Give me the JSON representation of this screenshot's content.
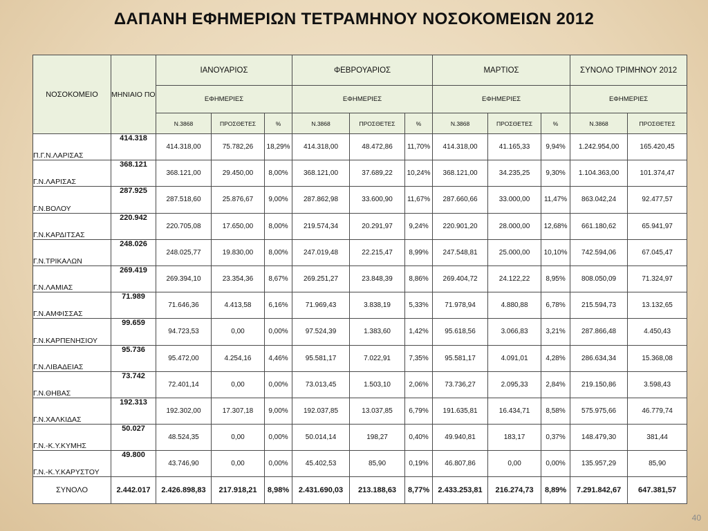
{
  "title": "ΔΑΠΑΝΗ ΕΦΗΜΕΡΙΩΝ ΤΕΤΡΑΜΗΝΟΥ ΝΟΣΟΚΟΜΕΙΩΝ 2012",
  "page_number": "40",
  "headers": {
    "hospital": "ΝΟΣΟΚΟΜΕΙΟ",
    "monthly_credit": "ΜΗΝΙΑΙΟ ΠΟΣΟ ΠΙΣΤΩΣΗΣ ΥΔΕ",
    "jan": "ΙΑΝΟΥΑΡΙΟΣ",
    "feb": "ΦΕΒΡΟΥΑΡΙΟΣ",
    "mar": "ΜΑΡΤΙΟΣ",
    "total": "ΣΥΝΟΛΟ  ΤΡΙΜΗΝΟΥ 2012",
    "shifts": "ΕΦΗΜΕΡΙΕΣ",
    "law": "Ν.3868",
    "extra": "ΠΡΟΣΘΕΤΕΣ",
    "pct": "%"
  },
  "rows": [
    {
      "name": "Π.Γ.Ν.ΛΑΡΙΣΑΣ",
      "credit": "414.318",
      "v": [
        "414.318,00",
        "75.782,26",
        "18,29%",
        "414.318,00",
        "48.472,86",
        "11,70%",
        "414.318,00",
        "41.165,33",
        "9,94%",
        "1.242.954,00",
        "165.420,45"
      ]
    },
    {
      "name": "Γ.Ν.ΛΑΡΙΣΑΣ",
      "credit": "368.121",
      "v": [
        "368.121,00",
        "29.450,00",
        "8,00%",
        "368.121,00",
        "37.689,22",
        "10,24%",
        "368.121,00",
        "34.235,25",
        "9,30%",
        "1.104.363,00",
        "101.374,47"
      ]
    },
    {
      "name": "Γ.Ν.ΒΟΛΟΥ",
      "credit": "287.925",
      "v": [
        "287.518,60",
        "25.876,67",
        "9,00%",
        "287.862,98",
        "33.600,90",
        "11,67%",
        "287.660,66",
        "33.000,00",
        "11,47%",
        "863.042,24",
        "92.477,57"
      ]
    },
    {
      "name": "Γ.Ν.ΚΑΡΔΙΤΣΑΣ",
      "credit": "220.942",
      "v": [
        "220.705,08",
        "17.650,00",
        "8,00%",
        "219.574,34",
        "20.291,97",
        "9,24%",
        "220.901,20",
        "28.000,00",
        "12,68%",
        "661.180,62",
        "65.941,97"
      ]
    },
    {
      "name": "Γ.Ν.ΤΡΙΚΑΛΩΝ",
      "credit": "248.026",
      "v": [
        "248.025,77",
        "19.830,00",
        "8,00%",
        "247.019,48",
        "22.215,47",
        "8,99%",
        "247.548,81",
        "25.000,00",
        "10,10%",
        "742.594,06",
        "67.045,47"
      ]
    },
    {
      "name": "Γ.Ν.ΛΑΜΙΑΣ",
      "credit": "269.419",
      "v": [
        "269.394,10",
        "23.354,36",
        "8,67%",
        "269.251,27",
        "23.848,39",
        "8,86%",
        "269.404,72",
        "24.122,22",
        "8,95%",
        "808.050,09",
        "71.324,97"
      ]
    },
    {
      "name": "Γ.Ν.ΑΜΦΙΣΣΑΣ",
      "credit": "71.989",
      "v": [
        "71.646,36",
        "4.413,58",
        "6,16%",
        "71.969,43",
        "3.838,19",
        "5,33%",
        "71.978,94",
        "4.880,88",
        "6,78%",
        "215.594,73",
        "13.132,65"
      ]
    },
    {
      "name": "Γ.Ν.ΚΑΡΠΕΝΗΣΙΟΥ",
      "credit": "99.659",
      "v": [
        "94.723,53",
        "0,00",
        "0,00%",
        "97.524,39",
        "1.383,60",
        "1,42%",
        "95.618,56",
        "3.066,83",
        "3,21%",
        "287.866,48",
        "4.450,43"
      ]
    },
    {
      "name": "Γ.Ν.ΛΙΒΑΔΕΙΑΣ",
      "credit": "95.736",
      "v": [
        "95.472,00",
        "4.254,16",
        "4,46%",
        "95.581,17",
        "7.022,91",
        "7,35%",
        "95.581,17",
        "4.091,01",
        "4,28%",
        "286.634,34",
        "15.368,08"
      ]
    },
    {
      "name": "Γ.Ν.ΘΗΒΑΣ",
      "credit": "73.742",
      "v": [
        "72.401,14",
        "0,00",
        "0,00%",
        "73.013,45",
        "1.503,10",
        "2,06%",
        "73.736,27",
        "2.095,33",
        "2,84%",
        "219.150,86",
        "3.598,43"
      ]
    },
    {
      "name": "Γ.Ν.ΧΑΛΚΙΔΑΣ",
      "credit": "192.313",
      "v": [
        "192.302,00",
        "17.307,18",
        "9,00%",
        "192.037,85",
        "13.037,85",
        "6,79%",
        "191.635,81",
        "16.434,71",
        "8,58%",
        "575.975,66",
        "46.779,74"
      ]
    },
    {
      "name": "Γ.Ν.-Κ.Υ.ΚΥΜΗΣ",
      "credit": "50.027",
      "v": [
        "48.524,35",
        "0,00",
        "0,00%",
        "50.014,14",
        "198,27",
        "0,40%",
        "49.940,81",
        "183,17",
        "0,37%",
        "148.479,30",
        "381,44"
      ]
    },
    {
      "name": "Γ.Ν.-Κ.Υ.ΚΑΡΥΣΤΟΥ",
      "credit": "49.800",
      "v": [
        "43.746,90",
        "0,00",
        "0,00%",
        "45.402,53",
        "85,90",
        "0,19%",
        "46.807,86",
        "0,00",
        "0,00%",
        "135.957,29",
        "85,90"
      ]
    }
  ],
  "total": {
    "name": "ΣΥΝΟΛΟ",
    "credit": "2.442.017",
    "v": [
      "2.426.898,83",
      "217.918,21",
      "8,98%",
      "2.431.690,03",
      "213.188,63",
      "8,77%",
      "2.433.253,81",
      "216.274,73",
      "8,89%",
      "7.291.842,67",
      "647.381,57"
    ]
  }
}
